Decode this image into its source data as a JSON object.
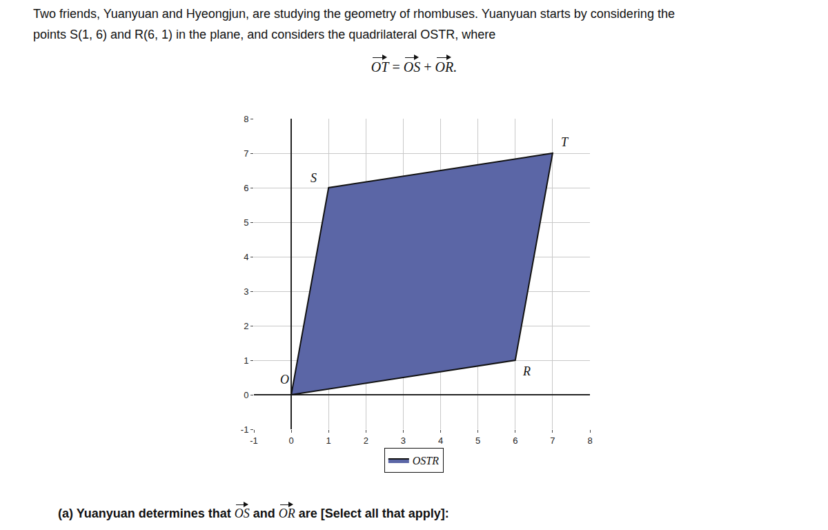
{
  "header": {
    "lines": [
      "Two friends, Yuanyuan and Hyeongjun, are studying the geometry of rhombuses. Yuanyuan starts by considering the",
      "points S(1, 6) and R(6, 1) in the plane, and considers the quadrilateral OSTR, where"
    ],
    "equation": [
      "OT",
      "=",
      "OS",
      "+",
      "OR."
    ]
  },
  "chart_data": {
    "type": "polygon",
    "series": [
      {
        "name": "OSTR",
        "color": "#5b66a6",
        "x": [
          0,
          1,
          7,
          6
        ],
        "y": [
          0,
          6,
          7,
          1
        ]
      }
    ],
    "point_labels": [
      {
        "text": "O",
        "x": 0,
        "y": 0
      },
      {
        "text": "S",
        "x": 1,
        "y": 6
      },
      {
        "text": "T",
        "x": 7,
        "y": 7
      },
      {
        "text": "R",
        "x": 6,
        "y": 1
      }
    ],
    "xlim": [
      -1,
      8
    ],
    "ylim": [
      -1,
      8
    ],
    "xticks": [
      -1,
      0,
      1,
      2,
      3,
      4,
      5,
      6,
      7,
      8
    ],
    "yticks": [
      -1,
      0,
      1,
      2,
      3,
      4,
      5,
      6,
      7,
      8
    ],
    "grid": true,
    "legend": "bottom"
  },
  "footer": {
    "parts": [
      {
        "text": "(a) Yuanyuan determines that "
      },
      {
        "vector": "OS"
      },
      {
        "text": " and "
      },
      {
        "vector": "OR"
      },
      {
        "text": " are [Select all that apply]:"
      }
    ]
  }
}
